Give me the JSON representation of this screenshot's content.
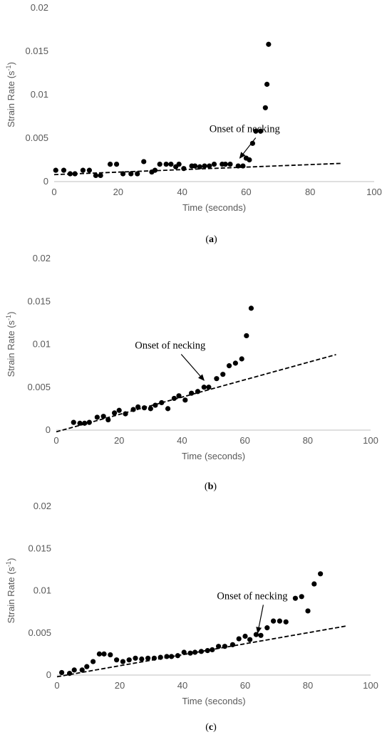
{
  "chart_data": [
    {
      "type": "scatter",
      "panel_label": "a",
      "xlabel": "Time (seconds)",
      "ylabel": "Strain Rate (s",
      "ylabel_sup": "-1",
      "ylabel_end": ")",
      "xlim": [
        0,
        100
      ],
      "ylim": [
        0,
        0.02
      ],
      "xticks": [
        "0",
        "20",
        "40",
        "60",
        "80",
        "100"
      ],
      "yticks": [
        "0",
        "0.005",
        "0.01",
        "0.015",
        "0.02"
      ],
      "annotation": {
        "text": "Onset of necking",
        "x": 48.5,
        "y": 0.0057,
        "arrow_to": [
          58,
          0.0027
        ]
      },
      "trendline": {
        "style": "dashed",
        "x": [
          0,
          90
        ],
        "y": [
          0.0008,
          0.0021
        ]
      },
      "points": [
        [
          0.5,
          0.0013
        ],
        [
          3,
          0.0013
        ],
        [
          5,
          0.0009
        ],
        [
          6.5,
          0.0009
        ],
        [
          9,
          0.0013
        ],
        [
          11,
          0.0013
        ],
        [
          13,
          0.0007
        ],
        [
          14.5,
          0.0007
        ],
        [
          17.5,
          0.002
        ],
        [
          19.5,
          0.002
        ],
        [
          21.5,
          0.0009
        ],
        [
          24,
          0.0009
        ],
        [
          26,
          0.0009
        ],
        [
          28,
          0.0023
        ],
        [
          30.5,
          0.0011
        ],
        [
          31.5,
          0.0013
        ],
        [
          33,
          0.002
        ],
        [
          35,
          0.002
        ],
        [
          36.5,
          0.002
        ],
        [
          38,
          0.0017
        ],
        [
          39,
          0.002
        ],
        [
          40.5,
          0.0015
        ],
        [
          43,
          0.0018
        ],
        [
          44,
          0.0018
        ],
        [
          45.5,
          0.0017
        ],
        [
          47,
          0.0018
        ],
        [
          48.5,
          0.0018
        ],
        [
          50,
          0.002
        ],
        [
          52.5,
          0.002
        ],
        [
          53.5,
          0.002
        ],
        [
          55,
          0.002
        ],
        [
          57.5,
          0.0018
        ],
        [
          59,
          0.0018
        ],
        [
          60,
          0.0027
        ],
        [
          61,
          0.0025
        ],
        [
          62,
          0.0044
        ],
        [
          63,
          0.0058
        ],
        [
          64.5,
          0.0058
        ],
        [
          66,
          0.0085
        ],
        [
          66.5,
          0.0112
        ],
        [
          67,
          0.0158
        ]
      ]
    },
    {
      "type": "scatter",
      "panel_label": "b",
      "xlabel": "Time (seconds)",
      "ylabel": "Strain Rate (s",
      "ylabel_sup": "-1",
      "ylabel_end": ")",
      "xlim": [
        0,
        100
      ],
      "ylim": [
        0,
        0.02
      ],
      "xticks": [
        "0",
        "20",
        "40",
        "60",
        "80",
        "100"
      ],
      "yticks": [
        "0",
        "0.005",
        "0.01",
        "0.015",
        "0.02"
      ],
      "annotation": {
        "text": "Onset of necking",
        "x": 25,
        "y": 0.0095,
        "arrow_to": [
          47,
          0.0058
        ]
      },
      "trendline": {
        "style": "dashed",
        "x": [
          0,
          89
        ],
        "y": [
          -0.0002,
          0.0088
        ]
      },
      "points": [
        [
          5.5,
          0.0009
        ],
        [
          7.5,
          0.0008
        ],
        [
          9,
          0.0008
        ],
        [
          10.5,
          0.0009
        ],
        [
          13,
          0.0015
        ],
        [
          15,
          0.0016
        ],
        [
          16.5,
          0.0012
        ],
        [
          18.5,
          0.002
        ],
        [
          20,
          0.0023
        ],
        [
          22,
          0.0019
        ],
        [
          24.5,
          0.0024
        ],
        [
          26,
          0.0027
        ],
        [
          28,
          0.0026
        ],
        [
          30,
          0.0025
        ],
        [
          31.5,
          0.0029
        ],
        [
          33.5,
          0.0032
        ],
        [
          35.5,
          0.0025
        ],
        [
          37.5,
          0.0037
        ],
        [
          39,
          0.004
        ],
        [
          41,
          0.0035
        ],
        [
          43,
          0.0043
        ],
        [
          45,
          0.0045
        ],
        [
          47,
          0.005
        ],
        [
          48.5,
          0.005
        ],
        [
          51,
          0.006
        ],
        [
          53,
          0.0065
        ],
        [
          55,
          0.0075
        ],
        [
          57,
          0.0078
        ],
        [
          59,
          0.0083
        ],
        [
          60.5,
          0.011
        ],
        [
          62,
          0.0142
        ]
      ]
    },
    {
      "type": "scatter",
      "panel_label": "c",
      "xlabel": "Time (seconds)",
      "ylabel": "Strain Rate (s",
      "ylabel_sup": "-1",
      "ylabel_end": ")",
      "xlim": [
        0,
        100
      ],
      "ylim": [
        0,
        0.02
      ],
      "xticks": [
        "0",
        "20",
        "40",
        "60",
        "80",
        "100"
      ],
      "yticks": [
        "0",
        "0.005",
        "0.01",
        "0.015",
        "0.02"
      ],
      "annotation": {
        "text": "Onset of necking",
        "x": 51,
        "y": 0.009,
        "arrow_to": [
          64,
          0.005
        ]
      },
      "trendline": {
        "style": "dashed",
        "x": [
          0,
          92
        ],
        "y": [
          -0.0002,
          0.0058
        ]
      },
      "points": [
        [
          1.5,
          0.0003
        ],
        [
          4,
          0.0002
        ],
        [
          5.5,
          0.0006
        ],
        [
          8,
          0.0006
        ],
        [
          9.5,
          0.001
        ],
        [
          11.5,
          0.0016
        ],
        [
          13.5,
          0.0025
        ],
        [
          15,
          0.0025
        ],
        [
          17,
          0.0024
        ],
        [
          19,
          0.0018
        ],
        [
          21,
          0.0016
        ],
        [
          23,
          0.0018
        ],
        [
          25,
          0.002
        ],
        [
          27,
          0.0019
        ],
        [
          29,
          0.002
        ],
        [
          31,
          0.002
        ],
        [
          33,
          0.0021
        ],
        [
          35,
          0.0022
        ],
        [
          36.5,
          0.0022
        ],
        [
          38.5,
          0.0023
        ],
        [
          40.5,
          0.0027
        ],
        [
          42.5,
          0.0026
        ],
        [
          44,
          0.0027
        ],
        [
          46,
          0.0028
        ],
        [
          48,
          0.0029
        ],
        [
          49.5,
          0.003
        ],
        [
          51.5,
          0.0034
        ],
        [
          53.5,
          0.0034
        ],
        [
          56,
          0.0036
        ],
        [
          58,
          0.0043
        ],
        [
          60,
          0.0046
        ],
        [
          61.5,
          0.0042
        ],
        [
          63.5,
          0.0048
        ],
        [
          65,
          0.0047
        ],
        [
          67,
          0.0056
        ],
        [
          69,
          0.0064
        ],
        [
          71,
          0.0064
        ],
        [
          73,
          0.0063
        ],
        [
          76,
          0.0091
        ],
        [
          78,
          0.0093
        ],
        [
          80,
          0.0076
        ],
        [
          82,
          0.0108
        ],
        [
          84,
          0.012
        ]
      ]
    }
  ]
}
